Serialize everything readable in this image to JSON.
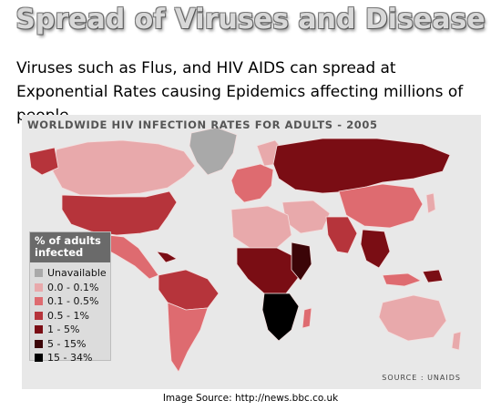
{
  "slide": {
    "title": "Spread of Viruses and Disease",
    "body": "Viruses such as Flus, and HIV AIDS can spread at Exponential Rates causing Epidemics affecting millions of people."
  },
  "map": {
    "title": "WORLDWIDE HIV INFECTION RATES FOR ADULTS - 2005",
    "legend_title": "% of adults infected",
    "legend": [
      {
        "label": "Unavailable",
        "color": "#a9a9a9"
      },
      {
        "label": "0.0 - 0.1%",
        "color": "#e8a9ab"
      },
      {
        "label": "0.1 - 0.5%",
        "color": "#de6b70"
      },
      {
        "label": "0.5 - 1%",
        "color": "#b6343b"
      },
      {
        "label": "1 - 5%",
        "color": "#7a0d14"
      },
      {
        "label": "5 - 15%",
        "color": "#3b0508"
      },
      {
        "label": "15 - 34%",
        "color": "#000000"
      }
    ],
    "source": "SOURCE : UNAIDS",
    "colors": {
      "background": "#e8e8e8",
      "ocean": "#e8e8e8",
      "border": "#f3dede"
    }
  },
  "footer": {
    "image_source": "Image Source: http://news.bbc.co.uk"
  }
}
